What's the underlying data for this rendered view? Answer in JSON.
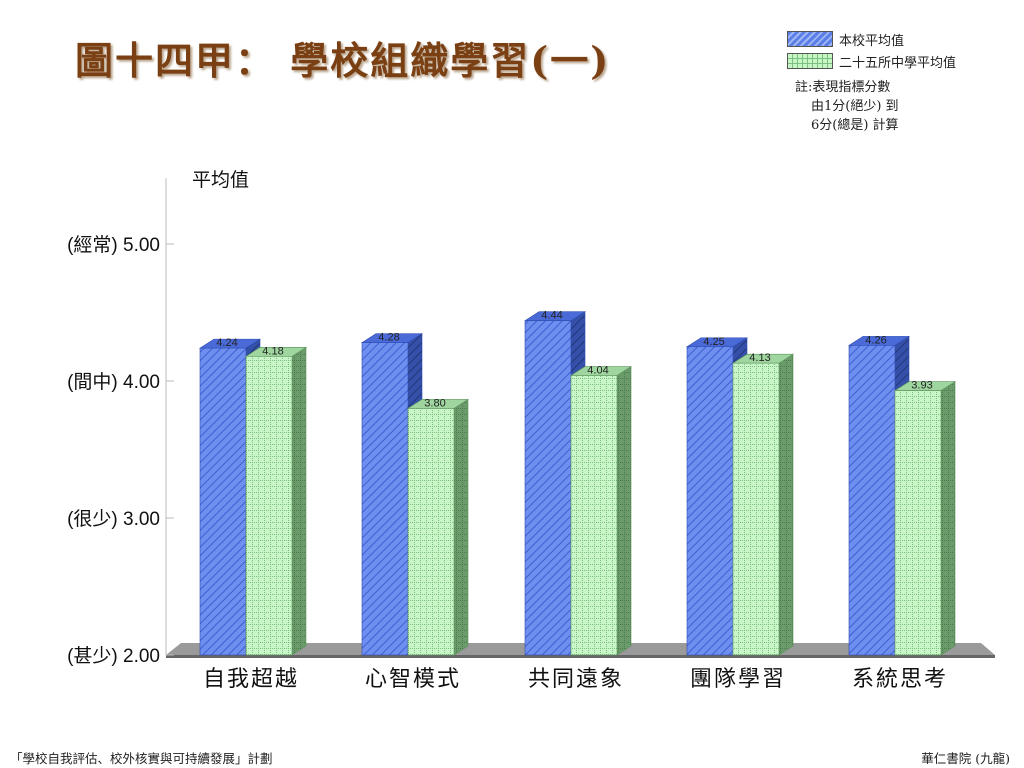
{
  "title": "圖十四甲： 學校組織學習(一)",
  "legend": {
    "school": "本校平均值",
    "avg25": "二十五所中學平均值"
  },
  "note": [
    "註:表現指標分數",
    "由1分(絕少) 到",
    "6分(總是) 計算"
  ],
  "footer": {
    "left": "「學校自我評估、校外核實與可持續發展」計劃",
    "right": "華仁書院 (九龍)"
  },
  "colors": {
    "school": "#5b7fe6",
    "avg25": "#c6f5c6"
  },
  "chart_data": {
    "type": "bar",
    "ylabel": "平均值",
    "ylim": [
      2,
      5
    ],
    "yticks": [
      {
        "value": 5,
        "label": "(經常) 5.00"
      },
      {
        "value": 4,
        "label": "(間中) 4.00"
      },
      {
        "value": 3,
        "label": "(很少) 3.00"
      },
      {
        "value": 2,
        "label": "(甚少) 2.00"
      }
    ],
    "categories": [
      "自我超越",
      "心智模式",
      "共同遠象",
      "團隊學習",
      "系統思考"
    ],
    "series": [
      {
        "name": "本校平均值",
        "values": [
          4.24,
          4.28,
          4.44,
          4.25,
          4.26
        ],
        "labels": [
          "4.24",
          "4.28",
          "4.44",
          "4.25",
          "4.26"
        ]
      },
      {
        "name": "二十五所中學平均值",
        "values": [
          4.18,
          3.8,
          4.04,
          4.13,
          3.93
        ],
        "labels": [
          "4.18",
          "3.80",
          "4.04",
          "4.13",
          "3.93"
        ]
      }
    ]
  }
}
